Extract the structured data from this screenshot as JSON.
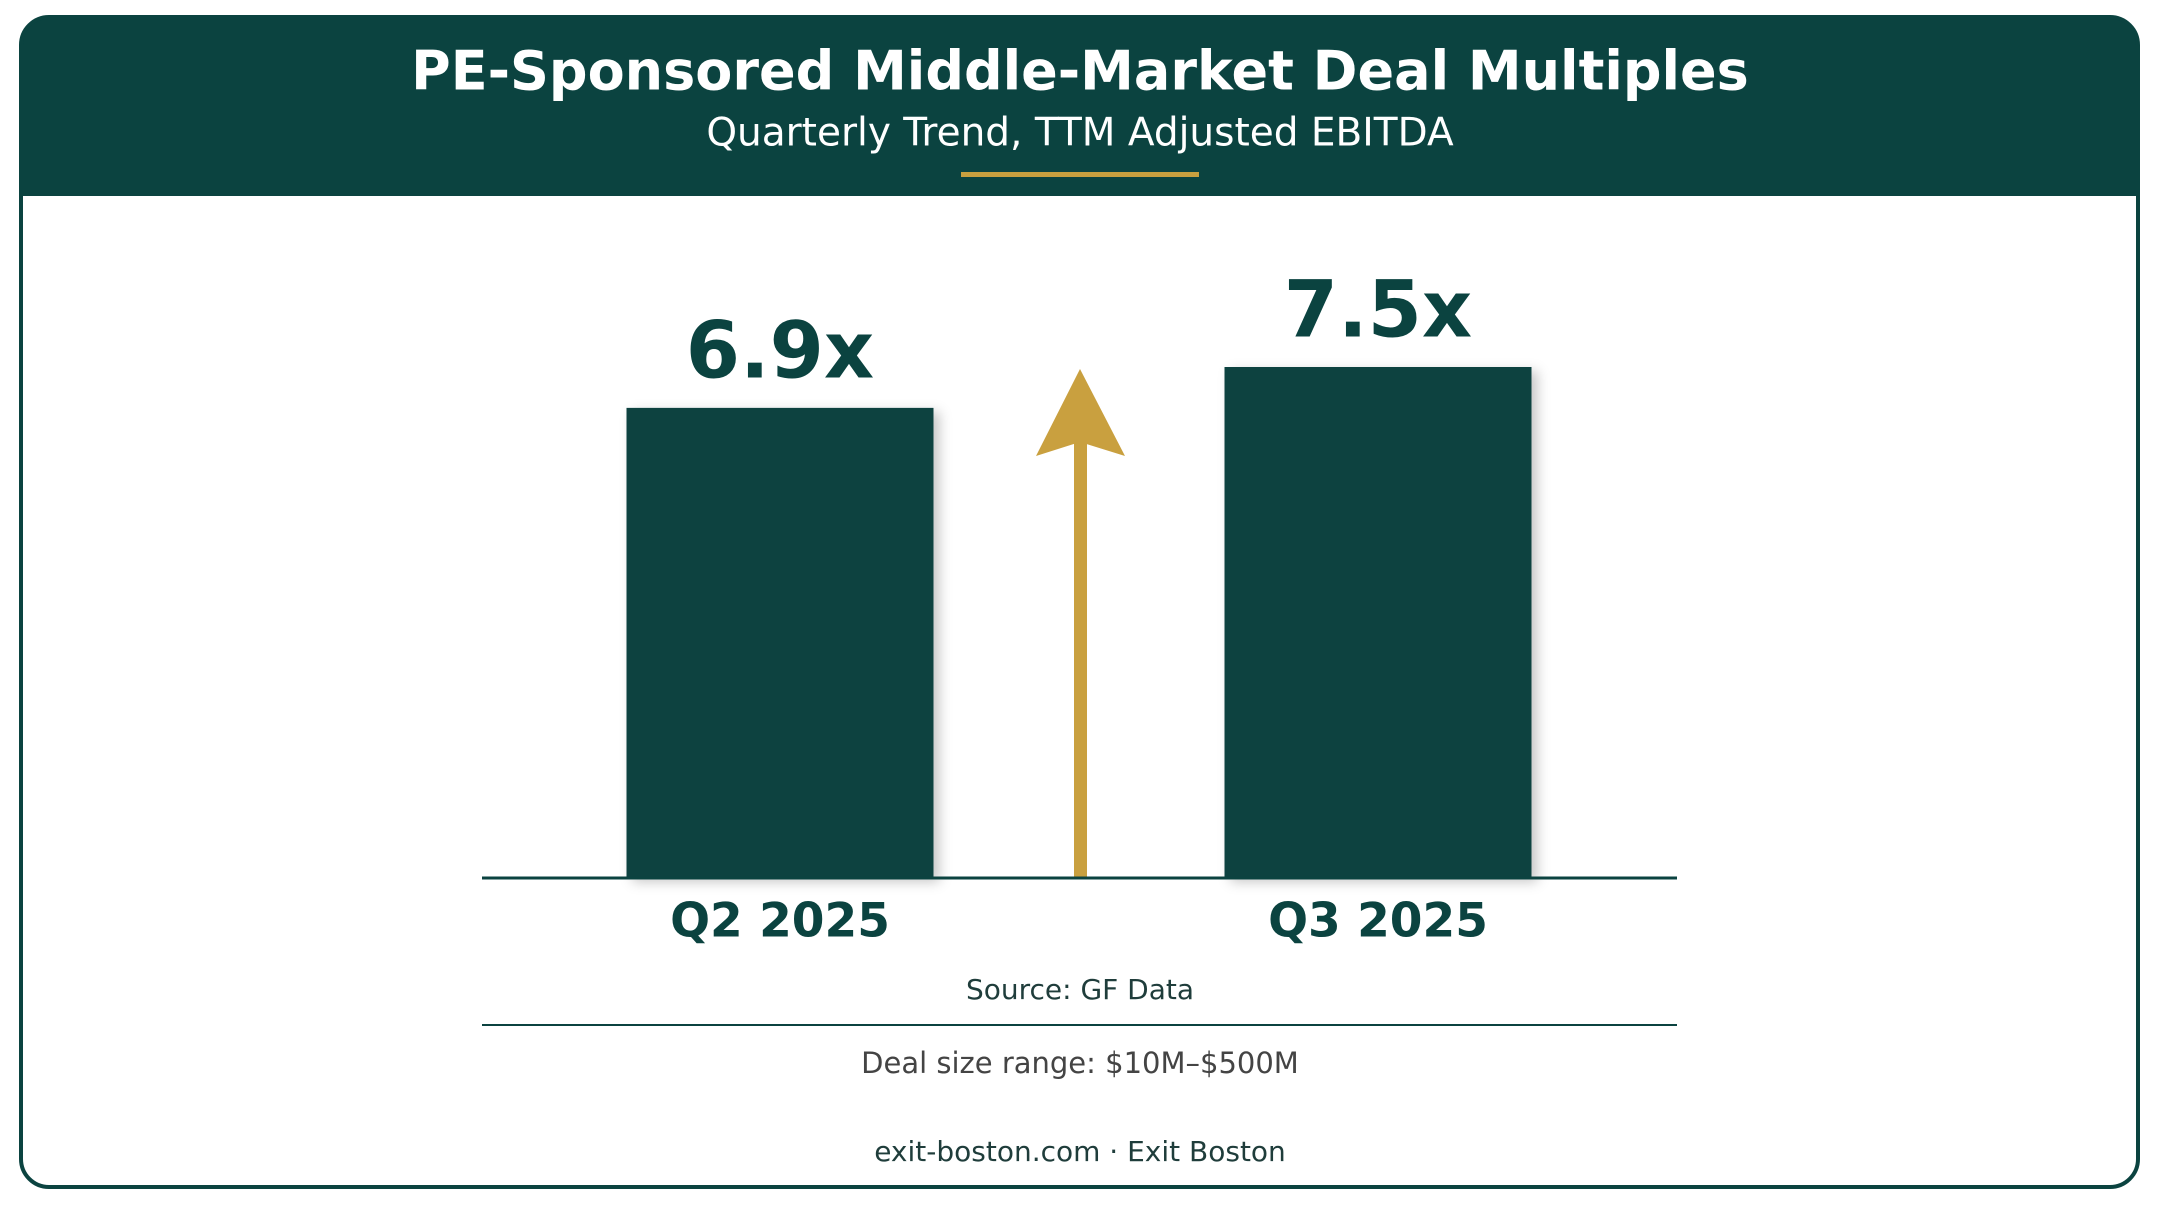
{
  "chart_data": {
    "type": "bar",
    "title": "PE-Sponsored Middle-Market Deal Multiples",
    "subtitle": "Quarterly Trend, TTM Adjusted EBITDA",
    "categories": [
      "Q2 2025",
      "Q3 2025"
    ],
    "values": [
      6.9,
      7.5
    ],
    "value_labels": [
      "6.9x",
      "7.5x"
    ],
    "color": "#0b4340",
    "source": "Source: GF Data",
    "note": "Deal size range: $10M–$500M",
    "footer": "exit-boston.com · Exit Boston"
  }
}
